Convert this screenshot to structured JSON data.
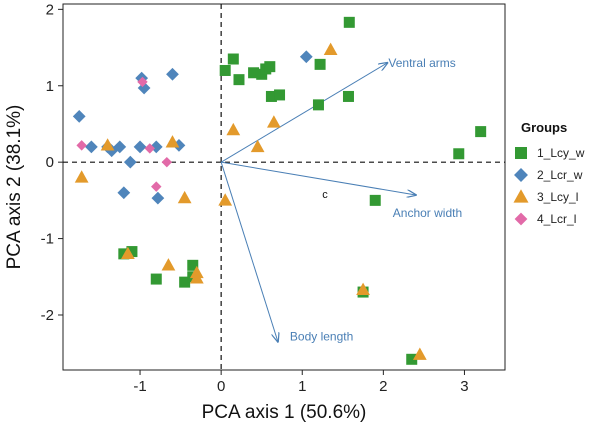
{
  "chart_data": {
    "type": "scatter",
    "title": "",
    "xlabel": "PCA axis 1  (50.6%)",
    "ylabel": "PCA axis 2  (38.1%)",
    "xlim": [
      -1.95,
      3.5
    ],
    "ylim": [
      -2.72,
      2.07
    ],
    "x_ticks": [
      -1,
      0,
      1,
      2,
      3
    ],
    "y_ticks": [
      -2,
      -1,
      0,
      1,
      2
    ],
    "reference_lines": {
      "x": 0,
      "y": 0,
      "style": "dashed"
    },
    "grid": false,
    "legend": {
      "title": "Groups",
      "placement": "right"
    },
    "annotations": [
      {
        "text": "c",
        "x": 1.28,
        "y": -0.47
      }
    ],
    "loading_vectors": [
      {
        "label": "Ventral arms",
        "x": 2.05,
        "y": 1.3
      },
      {
        "label": "Anchor width",
        "x": 2.4,
        "y": -0.43
      },
      {
        "label": "Body length",
        "x": 0.7,
        "y": -2.35
      }
    ],
    "series": [
      {
        "name": "1_Lcy_w",
        "marker": "square",
        "color": "#339933",
        "points": [
          [
            0.15,
            1.35
          ],
          [
            0.05,
            1.2
          ],
          [
            0.22,
            1.08
          ],
          [
            0.4,
            1.17
          ],
          [
            0.5,
            1.15
          ],
          [
            0.55,
            1.22
          ],
          [
            0.6,
            1.25
          ],
          [
            0.62,
            0.86
          ],
          [
            0.72,
            0.88
          ],
          [
            1.22,
            1.28
          ],
          [
            1.2,
            0.75
          ],
          [
            1.58,
            1.83
          ],
          [
            1.57,
            0.86
          ],
          [
            2.93,
            0.11
          ],
          [
            3.2,
            0.4
          ],
          [
            1.9,
            -0.5
          ],
          [
            1.75,
            -1.7
          ],
          [
            2.35,
            -2.58
          ],
          [
            -1.2,
            -1.2
          ],
          [
            -1.1,
            -1.17
          ],
          [
            -0.8,
            -1.53
          ],
          [
            -0.45,
            -1.57
          ],
          [
            -0.35,
            -1.35
          ],
          [
            -0.35,
            -1.5
          ]
        ]
      },
      {
        "name": "2_Lcr_w",
        "marker": "diamond",
        "color": "#4f85bb",
        "points": [
          [
            -1.75,
            0.6
          ],
          [
            -1.6,
            0.2
          ],
          [
            -1.4,
            0.2
          ],
          [
            -1.35,
            0.15
          ],
          [
            -1.25,
            0.2
          ],
          [
            -1.2,
            -0.4
          ],
          [
            -1.12,
            0.0
          ],
          [
            -0.98,
            1.1
          ],
          [
            -0.95,
            0.97
          ],
          [
            -1.0,
            0.2
          ],
          [
            -0.8,
            0.2
          ],
          [
            -0.78,
            -0.47
          ],
          [
            -0.6,
            1.15
          ],
          [
            -0.52,
            0.22
          ],
          [
            1.05,
            1.38
          ]
        ]
      },
      {
        "name": "3_Lcy_l",
        "marker": "triangle",
        "color": "#e39a2b",
        "points": [
          [
            -1.72,
            -0.2
          ],
          [
            -1.4,
            0.22
          ],
          [
            -1.15,
            -1.2
          ],
          [
            -0.65,
            -1.35
          ],
          [
            -0.6,
            0.26
          ],
          [
            -0.45,
            -0.47
          ],
          [
            -0.3,
            -1.45
          ],
          [
            -0.3,
            -1.52
          ],
          [
            0.15,
            0.42
          ],
          [
            0.65,
            0.52
          ],
          [
            0.45,
            0.2
          ],
          [
            1.35,
            1.47
          ],
          [
            1.75,
            -1.67
          ],
          [
            2.45,
            -2.52
          ],
          [
            0.05,
            -0.5
          ]
        ]
      },
      {
        "name": "4_Lcr_l",
        "marker": "diamond",
        "color": "#e26aa8",
        "points": [
          [
            -1.72,
            0.22
          ],
          [
            -0.97,
            1.05
          ],
          [
            -0.88,
            0.18
          ],
          [
            -0.8,
            -0.32
          ],
          [
            -0.67,
            0.0
          ]
        ]
      }
    ]
  }
}
